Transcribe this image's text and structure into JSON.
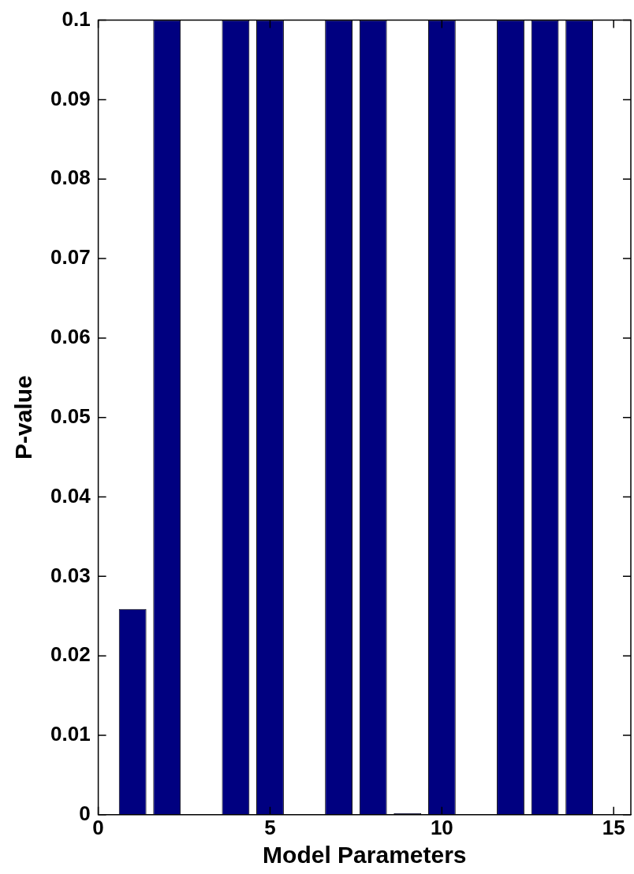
{
  "chart_data": {
    "type": "bar",
    "xlabel": "Model Parameters",
    "ylabel": "P-value",
    "x": [
      1,
      2,
      3,
      4,
      5,
      6,
      7,
      8,
      9,
      10,
      11,
      12,
      13,
      14,
      15
    ],
    "values": [
      0.0259,
      0.1,
      0,
      0.1,
      0.1,
      0,
      0.1,
      0.1,
      0.0002,
      0.1,
      0,
      0.1,
      0.1,
      0.1,
      0
    ],
    "color": "#000080",
    "xlim": [
      0,
      15.5
    ],
    "xticks": [
      0,
      5,
      10,
      15
    ],
    "ylim": [
      0,
      0.1
    ],
    "yticks": [
      0,
      0.01,
      0.02,
      0.03,
      0.04,
      0.05,
      0.06,
      0.07,
      0.08,
      0.09,
      0.1
    ],
    "grid": false,
    "legend": false
  }
}
